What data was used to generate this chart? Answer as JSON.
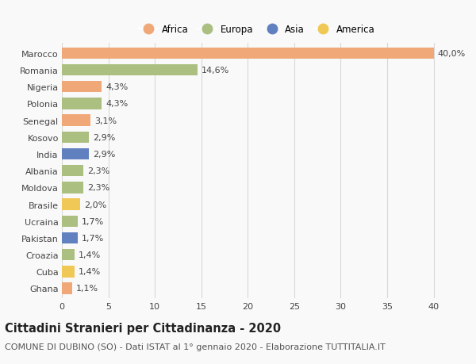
{
  "countries": [
    "Marocco",
    "Romania",
    "Nigeria",
    "Polonia",
    "Senegal",
    "Kosovo",
    "India",
    "Albania",
    "Moldova",
    "Brasile",
    "Ucraina",
    "Pakistan",
    "Croazia",
    "Cuba",
    "Ghana"
  ],
  "values": [
    40.0,
    14.6,
    4.3,
    4.3,
    3.1,
    2.9,
    2.9,
    2.3,
    2.3,
    2.0,
    1.7,
    1.7,
    1.4,
    1.4,
    1.1
  ],
  "labels": [
    "40,0%",
    "14,6%",
    "4,3%",
    "4,3%",
    "3,1%",
    "2,9%",
    "2,9%",
    "2,3%",
    "2,3%",
    "2,0%",
    "1,7%",
    "1,7%",
    "1,4%",
    "1,4%",
    "1,1%"
  ],
  "continents": [
    "Africa",
    "Europa",
    "Africa",
    "Europa",
    "Africa",
    "Europa",
    "Asia",
    "Europa",
    "Europa",
    "America",
    "Europa",
    "Asia",
    "Europa",
    "America",
    "Africa"
  ],
  "continent_colors": {
    "Africa": "#F0A878",
    "Europa": "#AABF80",
    "Asia": "#6080C0",
    "America": "#F0C855"
  },
  "legend_order": [
    "Africa",
    "Europa",
    "Asia",
    "America"
  ],
  "title": "Cittadini Stranieri per Cittadinanza - 2020",
  "subtitle": "COMUNE DI DUBINO (SO) - Dati ISTAT al 1° gennaio 2020 - Elaborazione TUTTITALIA.IT",
  "xlim": [
    0,
    42
  ],
  "xticks": [
    0,
    5,
    10,
    15,
    20,
    25,
    30,
    35,
    40
  ],
  "background_color": "#f9f9f9",
  "grid_color": "#d8d8d8",
  "bar_height": 0.68,
  "title_fontsize": 10.5,
  "subtitle_fontsize": 8,
  "label_fontsize": 8,
  "tick_fontsize": 8,
  "legend_fontsize": 8.5
}
